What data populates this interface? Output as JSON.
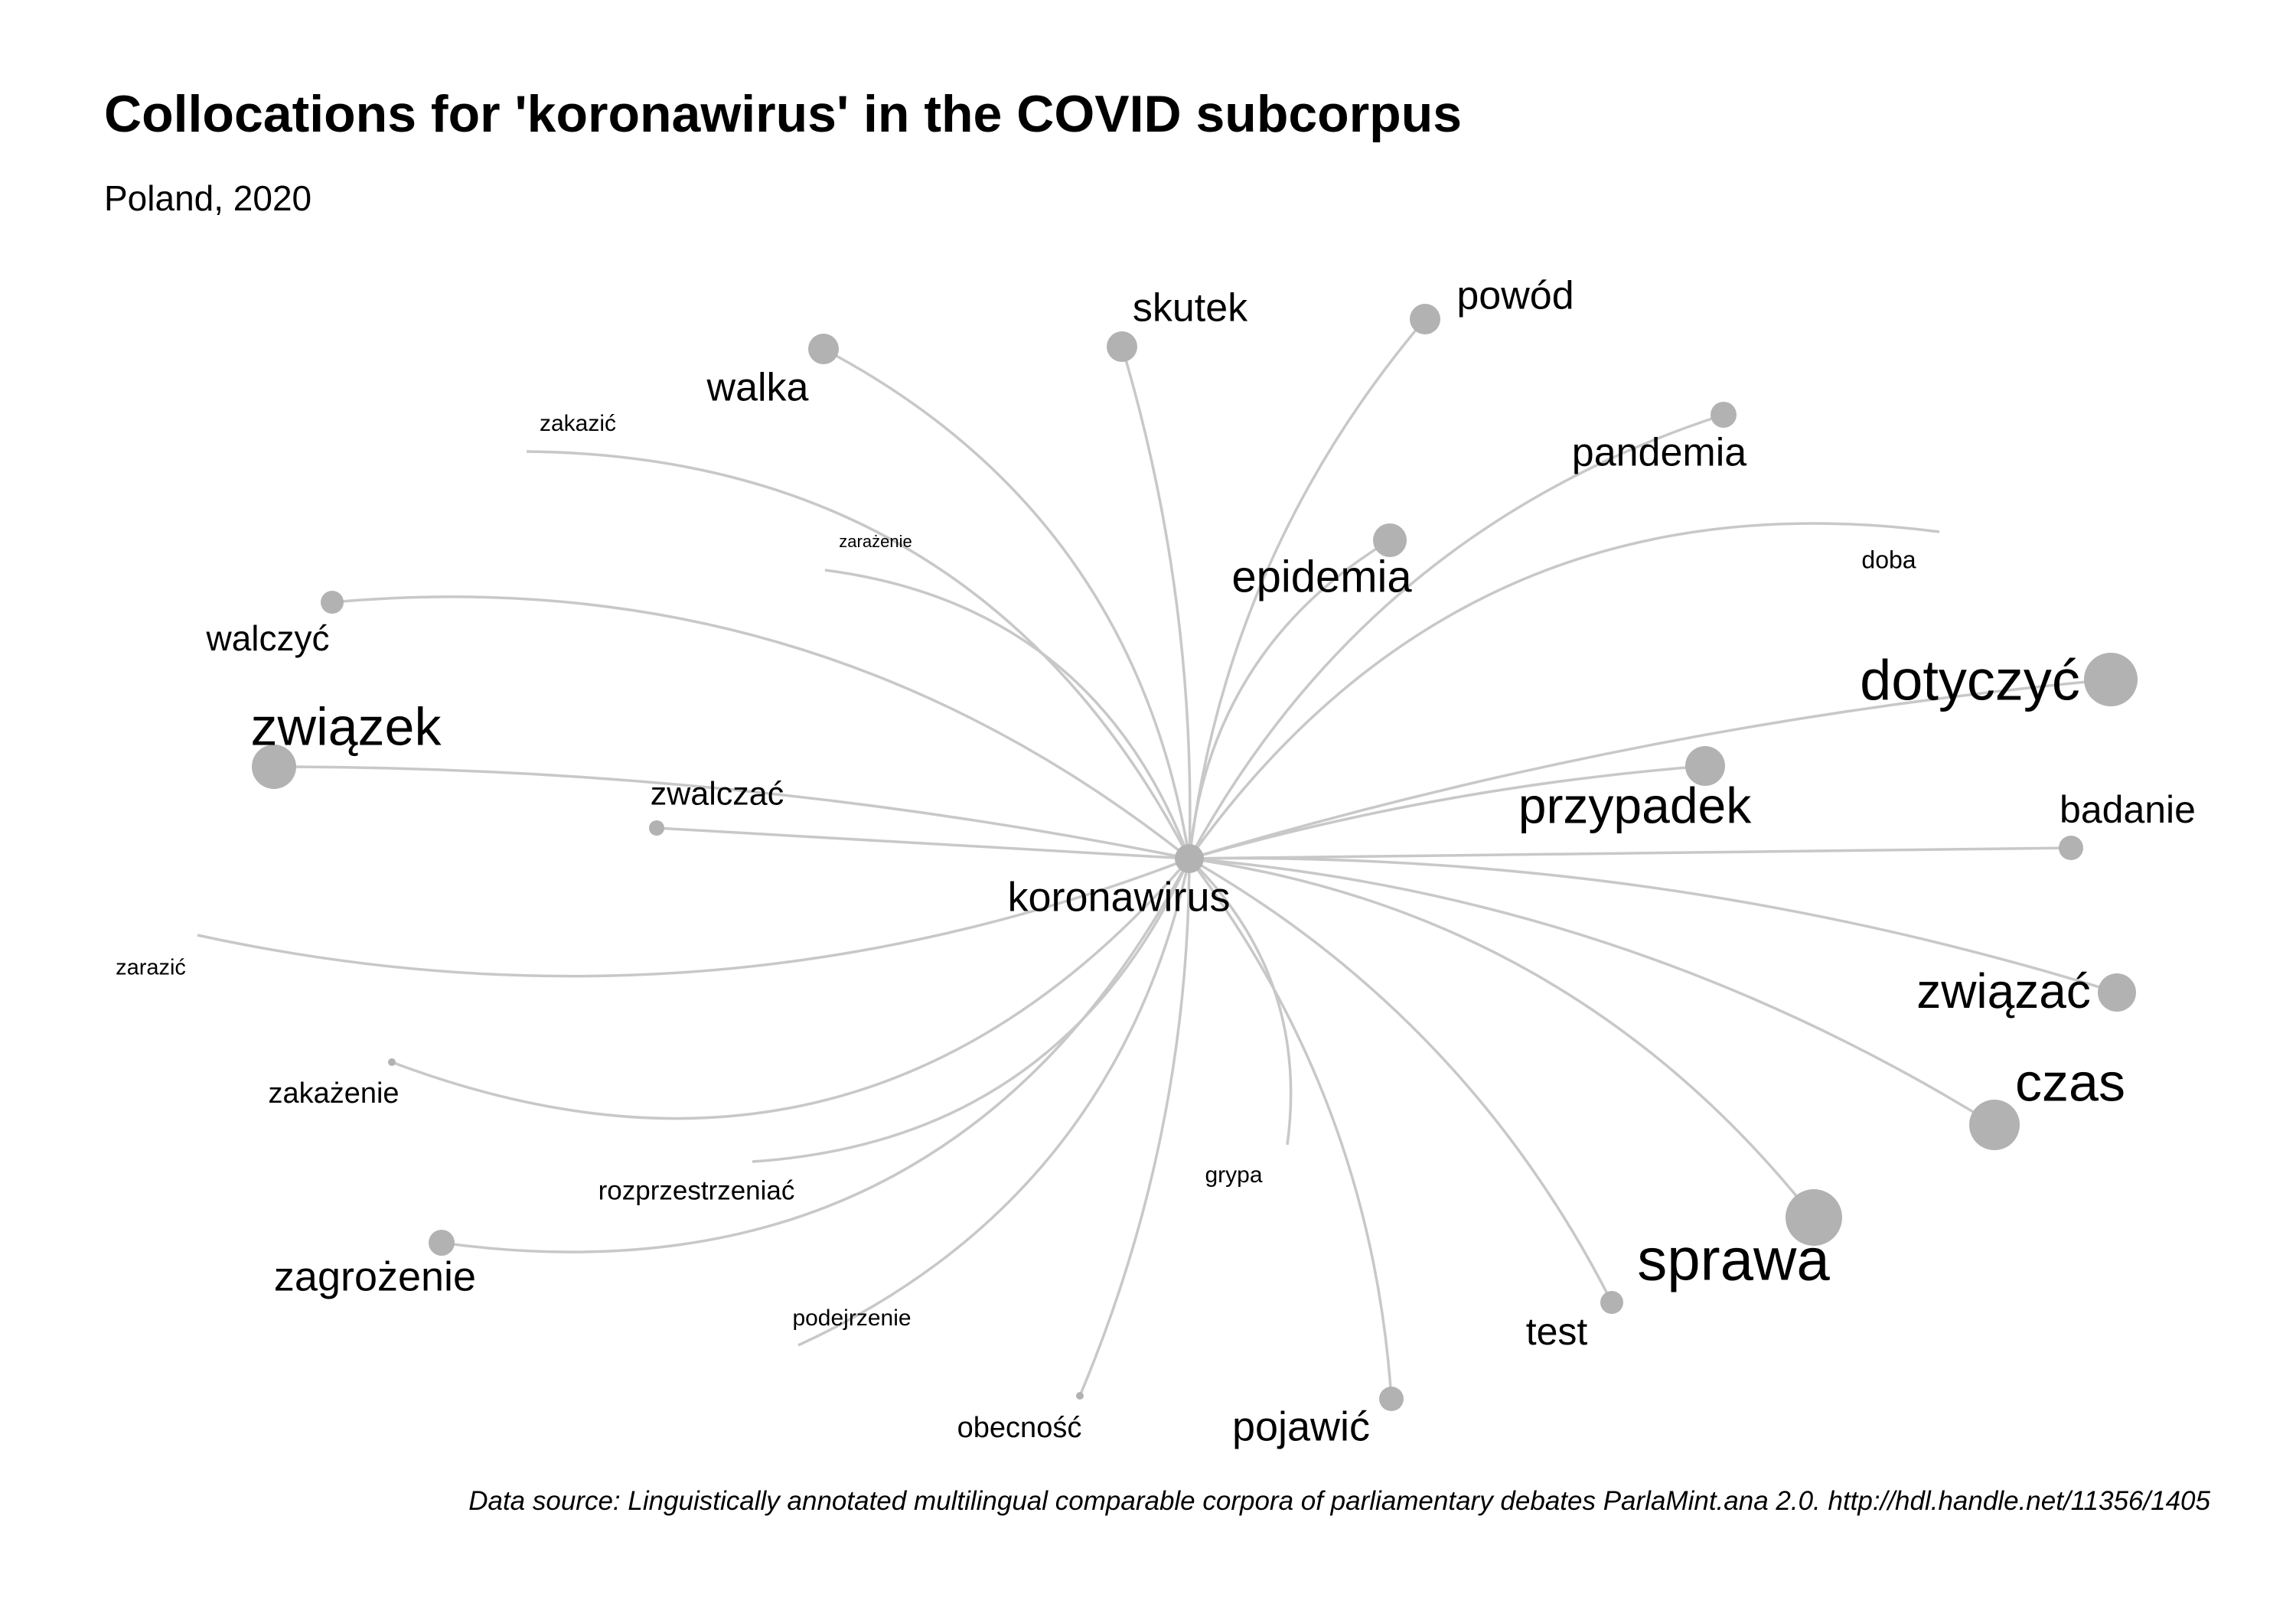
{
  "header": {
    "title": "Collocations for 'koronawirus' in the COVID subcorpus",
    "subtitle": "Poland, 2020"
  },
  "footer": {
    "caption": "Data source: Linguistically annotated multilingual comparable corpora of parliamentary debates ParlaMint.ana 2.0. http://hdl.handle.net/11356/1405"
  },
  "colors": {
    "node": "#b2b2b2",
    "edge": "#c8c8c8",
    "text": "#000000",
    "background": "#ffffff"
  },
  "network": {
    "center": "koronawirus",
    "collocates": [
      "walka",
      "skutek",
      "powód",
      "pandemia",
      "zakazić",
      "zarażenie",
      "epidemia",
      "doba",
      "walczyć",
      "dotyczyć",
      "związek",
      "przypadek",
      "zwalczać",
      "badanie",
      "zarazić",
      "związać",
      "czas",
      "zakażenie",
      "rozprzestrzeniać",
      "grypa",
      "sprawa",
      "zagrożenie",
      "podejrzenie",
      "test",
      "obecność",
      "pojawić"
    ]
  }
}
